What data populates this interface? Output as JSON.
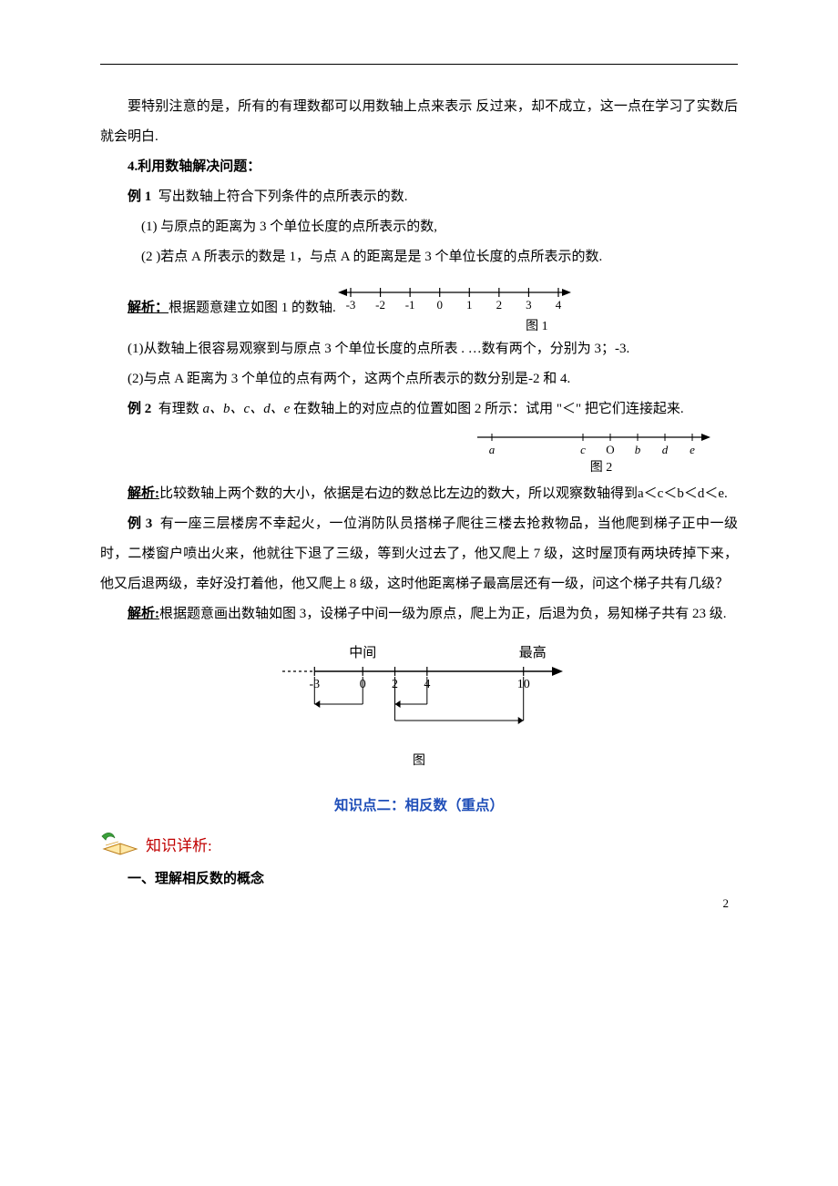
{
  "intro_note": "要特别注意的是，所有的有理数都可以用数轴上点来表示 反过来，却不成立，这一点在学习了实数后就会明白.",
  "section4_title": "4.利用数轴解决问题：",
  "ex1": {
    "label": "例 1",
    "stem": "写出数轴上符合下列条件的点所表示的数.",
    "q1": "(1) 与原点的距离为 3 个单位长度的点所表示的数,",
    "q2": "(2 )若点 A 所表示的数是 1，与点 A 的距离是是 3 个单位长度的点所表示的数.",
    "analysis_label": "解析：",
    "analysis_lead": "根据题意建立如图 1 的数轴.",
    "a1": "(1)从数轴上很容易观察到与原点 3 个单位长度的点所表 . …数有两个，分别为 3；-3.",
    "a2": "(2)与点 A 距离为 3 个单位的点有两个，这两个点所表示的数分别是-2 和 4."
  },
  "ex2": {
    "label": "例 2",
    "stem_pre": "有理数 ",
    "vars": "a、b、c、d、e",
    "stem_post": " 在数轴上的对应点的位置如图 2 所示：试用 \"＜\" 把它们连接起来.",
    "analysis_label": "解析:",
    "analysis_body": "比较数轴上两个数的大小，依据是右边的数总比左边的数大，所以观察数轴得到a＜c＜b＜d＜e."
  },
  "ex3": {
    "label": "例 3",
    "stem": "有一座三层楼房不幸起火，一位消防队员搭梯子爬往三楼去抢救物品，当他爬到梯子正中一级时，二楼窗户喷出火来，他就往下退了三级，等到火过去了，他又爬上 7 级，这时屋顶有两块砖掉下来，他又后退两级，幸好没打着他，他又爬上 8 级，这时他距离梯子最高层还有一级，问这个梯子共有几级？",
    "analysis_label": "解析:",
    "analysis_body": "根据题意画出数轴如图 3，设梯子中间一级为原点，爬上为正，后退为负，易知梯子共有 23 级."
  },
  "fig1": {
    "caption": "图 1",
    "ticks": [
      -3,
      -2,
      -1,
      0,
      1,
      2,
      3,
      4
    ],
    "line_color": "#000000",
    "fontsize": 13
  },
  "fig2": {
    "caption": "图 2",
    "labels": [
      "a",
      "c",
      "O",
      "b",
      "d",
      "e"
    ],
    "line_color": "#000000",
    "fontsize": 13
  },
  "fig3": {
    "caption": "图",
    "top_labels": {
      "middle": "中间",
      "max": "最高"
    },
    "ticks": [
      -3,
      0,
      2,
      4,
      10
    ],
    "colors": {
      "line": "#000000",
      "text": "#000000"
    }
  },
  "kp2": {
    "heading": "知识点二：相反数（重点）",
    "icon_label": "知识详析:",
    "sub1": "一、理解相反数的概念"
  },
  "page_number": "2"
}
